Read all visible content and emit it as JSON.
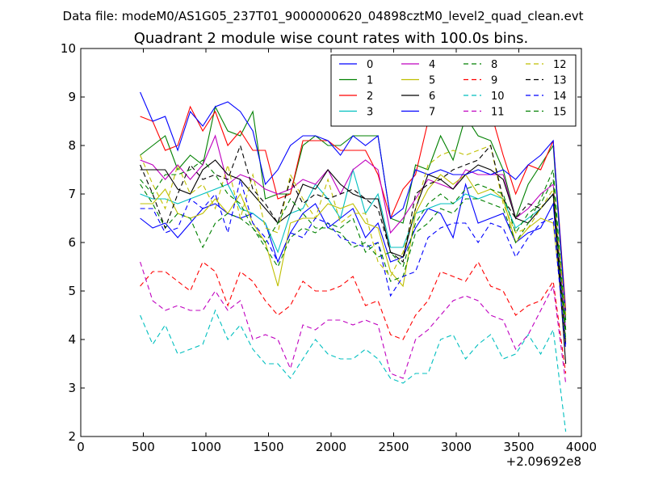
{
  "chart_data": {
    "type": "line",
    "suptitle": "Data file: modeM0/AS1G05_237T01_9000000620_04898cztM0_level2_quad_clean.evt",
    "title": "Quadrant 2 module wise count rates with 100.0s bins.",
    "xlabel": "",
    "ylabel": "",
    "x_offset_label": "+2.09692e8",
    "xlim": [
      0,
      4000
    ],
    "ylim": [
      2,
      10
    ],
    "x_ticks": [
      0,
      500,
      1000,
      1500,
      2000,
      2500,
      3000,
      3500,
      4000
    ],
    "x_tick_labels": [
      "0",
      "500",
      "1000",
      "1500",
      "2000",
      "2500",
      "3000",
      "3500",
      "4000"
    ],
    "y_ticks": [
      2,
      3,
      4,
      5,
      6,
      7,
      8,
      9,
      10
    ],
    "y_tick_labels": [
      "2",
      "3",
      "4",
      "5",
      "6",
      "7",
      "8",
      "9",
      "10"
    ],
    "grid": false,
    "legend_position": "top-right",
    "legend_columns": 4,
    "x": [
      475,
      575,
      675,
      775,
      875,
      975,
      1075,
      1175,
      1275,
      1375,
      1475,
      1575,
      1675,
      1775,
      1875,
      1975,
      2075,
      2175,
      2275,
      2375,
      2475,
      2575,
      2675,
      2775,
      2875,
      2975,
      3075,
      3175,
      3275,
      3375,
      3475,
      3575,
      3675,
      3775,
      3875
    ],
    "series": [
      {
        "name": "0",
        "color": "#0000ff",
        "dash": "solid",
        "values": [
          6.5,
          6.3,
          6.4,
          6.1,
          6.4,
          6.7,
          6.8,
          6.6,
          6.5,
          6.6,
          6.4,
          5.6,
          6.2,
          6.6,
          6.8,
          6.3,
          6.5,
          6.7,
          6.1,
          6.4,
          5.6,
          5.7,
          6.3,
          6.7,
          6.6,
          6.1,
          7.2,
          6.4,
          6.5,
          6.6,
          6.0,
          6.2,
          6.3,
          6.8,
          3.9
        ]
      },
      {
        "name": "1",
        "color": "#008000",
        "dash": "solid",
        "values": [
          7.8,
          8.0,
          8.2,
          7.5,
          7.8,
          7.6,
          8.8,
          8.3,
          8.2,
          8.7,
          6.9,
          7.0,
          7.0,
          8.0,
          8.2,
          8.0,
          8.0,
          8.2,
          8.2,
          8.2,
          6.5,
          6.4,
          7.6,
          7.5,
          8.2,
          7.7,
          8.6,
          8.2,
          8.1,
          7.5,
          6.5,
          7.2,
          7.6,
          8.0,
          4.4
        ]
      },
      {
        "name": "2",
        "color": "#ff0000",
        "dash": "solid",
        "values": [
          8.6,
          8.5,
          7.9,
          8.0,
          8.8,
          8.3,
          8.7,
          8.0,
          8.3,
          7.9,
          7.9,
          6.9,
          7.0,
          8.1,
          8.1,
          8.1,
          7.9,
          7.9,
          7.9,
          7.4,
          6.5,
          7.1,
          7.4,
          8.5,
          8.5,
          8.5,
          8.6,
          8.6,
          8.7,
          7.8,
          7.0,
          7.6,
          7.5,
          8.1,
          4.6
        ]
      },
      {
        "name": "3",
        "color": "#00bfbf",
        "dash": "solid",
        "values": [
          7.0,
          6.9,
          6.9,
          6.8,
          6.9,
          7.0,
          7.1,
          7.2,
          6.7,
          6.6,
          6.4,
          5.8,
          6.6,
          6.7,
          7.2,
          6.9,
          6.5,
          7.5,
          6.6,
          7.0,
          5.9,
          5.9,
          6.6,
          6.7,
          6.8,
          6.8,
          7.0,
          6.9,
          7.0,
          6.9,
          6.3,
          6.5,
          6.7,
          7.0,
          4.2
        ]
      },
      {
        "name": "4",
        "color": "#bf00bf",
        "dash": "solid",
        "values": [
          7.7,
          7.6,
          7.3,
          7.6,
          7.3,
          7.6,
          8.2,
          7.2,
          7.4,
          7.3,
          7.1,
          7.0,
          7.1,
          7.3,
          7.2,
          7.5,
          7.0,
          7.5,
          7.7,
          7.5,
          6.2,
          6.5,
          6.9,
          7.3,
          7.2,
          7.1,
          7.5,
          7.4,
          7.4,
          7.4,
          6.5,
          6.7,
          7.0,
          7.2,
          4.2
        ]
      },
      {
        "name": "5",
        "color": "#bfbf00",
        "dash": "solid",
        "values": [
          6.8,
          6.8,
          7.1,
          6.6,
          6.5,
          6.6,
          6.9,
          6.6,
          7.0,
          6.4,
          6.0,
          5.1,
          6.4,
          6.5,
          6.5,
          6.8,
          6.7,
          6.8,
          6.4,
          6.3,
          5.4,
          5.1,
          6.6,
          7.1,
          7.4,
          7.2,
          7.4,
          7.0,
          7.1,
          6.9,
          6.0,
          6.3,
          6.5,
          6.4,
          4.0
        ]
      },
      {
        "name": "6",
        "color": "#000000",
        "dash": "solid",
        "values": [
          7.5,
          7.5,
          7.5,
          7.1,
          7.0,
          7.5,
          7.7,
          7.4,
          7.3,
          7.0,
          6.7,
          6.4,
          6.6,
          7.2,
          7.1,
          7.5,
          7.2,
          7.0,
          6.9,
          6.9,
          5.8,
          5.7,
          6.7,
          7.4,
          7.3,
          7.1,
          7.4,
          7.6,
          7.5,
          7.3,
          6.5,
          6.4,
          6.7,
          7.0,
          3.5
        ]
      },
      {
        "name": "7",
        "color": "#0000ff",
        "dash": "solid",
        "values": [
          9.1,
          8.5,
          8.6,
          7.9,
          8.7,
          8.4,
          8.8,
          8.9,
          8.7,
          8.3,
          7.2,
          7.5,
          8.0,
          8.2,
          8.2,
          8.1,
          7.8,
          8.2,
          8.0,
          8.2,
          6.5,
          6.7,
          7.5,
          7.4,
          7.5,
          7.4,
          7.4,
          7.5,
          7.4,
          7.5,
          7.3,
          7.6,
          7.8,
          8.1,
          4.5
        ]
      },
      {
        "name": "8",
        "color": "#008000",
        "dash": "dashed",
        "values": [
          7.2,
          6.8,
          6.3,
          6.6,
          6.5,
          5.9,
          6.4,
          6.6,
          6.5,
          6.3,
          5.9,
          5.5,
          6.1,
          6.3,
          6.2,
          6.4,
          6.3,
          6.5,
          5.8,
          6.0,
          5.2,
          5.3,
          6.2,
          6.4,
          6.7,
          6.6,
          6.9,
          6.9,
          6.8,
          6.7,
          6.0,
          6.4,
          6.9,
          7.5,
          4.2
        ]
      },
      {
        "name": "9",
        "color": "#ff0000",
        "dash": "dashed",
        "values": [
          5.1,
          5.4,
          5.4,
          5.2,
          5.0,
          5.6,
          5.4,
          4.7,
          5.4,
          5.2,
          4.8,
          4.5,
          4.7,
          5.2,
          5.0,
          5.0,
          5.1,
          5.3,
          4.7,
          4.8,
          4.1,
          4.0,
          4.5,
          4.8,
          5.4,
          5.3,
          5.2,
          5.6,
          5.1,
          5.0,
          4.5,
          4.7,
          4.8,
          5.2,
          3.3
        ]
      },
      {
        "name": "10",
        "color": "#00bfbf",
        "dash": "dashed",
        "values": [
          4.5,
          3.9,
          4.3,
          3.7,
          3.8,
          3.9,
          4.6,
          4.0,
          4.3,
          3.8,
          3.5,
          3.5,
          3.2,
          3.6,
          4.0,
          3.7,
          3.6,
          3.6,
          3.8,
          3.6,
          3.2,
          3.1,
          3.3,
          3.3,
          4.0,
          4.1,
          3.6,
          3.9,
          4.1,
          3.6,
          3.7,
          4.1,
          3.7,
          4.2,
          2.1
        ]
      },
      {
        "name": "11",
        "color": "#bf00bf",
        "dash": "dashed",
        "values": [
          5.6,
          4.8,
          4.6,
          4.7,
          4.6,
          4.6,
          5.0,
          4.6,
          4.8,
          4.0,
          4.1,
          4.0,
          3.4,
          4.3,
          4.2,
          4.4,
          4.4,
          4.3,
          4.4,
          4.3,
          3.3,
          3.2,
          4.0,
          4.2,
          4.5,
          4.8,
          4.9,
          4.8,
          4.5,
          4.4,
          3.8,
          4.1,
          4.6,
          5.1,
          3.1
        ]
      },
      {
        "name": "12",
        "color": "#bfbf00",
        "dash": "dashed",
        "values": [
          7.8,
          7.2,
          6.7,
          7.6,
          7.0,
          7.2,
          6.7,
          7.6,
          6.5,
          7.4,
          6.3,
          6.2,
          7.4,
          6.9,
          6.5,
          7.3,
          6.4,
          6.6,
          6.6,
          5.6,
          5.3,
          5.8,
          6.7,
          7.6,
          7.8,
          7.9,
          7.8,
          7.9,
          8.0,
          6.8,
          6.2,
          6.3,
          6.7,
          7.1,
          4.5
        ]
      },
      {
        "name": "13",
        "color": "#000000",
        "dash": "dashed",
        "values": [
          7.6,
          7.0,
          6.3,
          7.0,
          7.6,
          7.3,
          7.4,
          7.3,
          8.0,
          7.1,
          6.8,
          6.4,
          7.3,
          6.8,
          7.0,
          6.9,
          7.0,
          7.1,
          6.9,
          6.7,
          5.8,
          5.6,
          7.0,
          7.2,
          7.3,
          7.5,
          7.6,
          7.7,
          8.0,
          6.9,
          6.5,
          6.8,
          6.7,
          7.0,
          3.9
        ]
      },
      {
        "name": "14",
        "color": "#0000ff",
        "dash": "dashed",
        "values": [
          6.7,
          6.7,
          6.2,
          6.3,
          6.9,
          6.7,
          7.0,
          6.2,
          7.3,
          6.4,
          6.1,
          5.6,
          6.2,
          6.1,
          6.5,
          6.4,
          6.1,
          6.0,
          5.9,
          6.0,
          4.9,
          5.3,
          5.4,
          6.1,
          6.3,
          6.4,
          6.4,
          6.0,
          6.4,
          6.3,
          5.7,
          6.1,
          6.4,
          6.5,
          3.8
        ]
      },
      {
        "name": "15",
        "color": "#008000",
        "dash": "dashed",
        "values": [
          7.3,
          7.0,
          7.4,
          7.4,
          7.5,
          7.7,
          7.4,
          7.0,
          6.8,
          6.3,
          6.0,
          6.4,
          6.9,
          6.6,
          6.3,
          6.3,
          6.2,
          5.9,
          6.0,
          5.7,
          5.8,
          5.5,
          6.4,
          6.8,
          7.0,
          6.8,
          7.1,
          7.2,
          7.1,
          7.0,
          6.2,
          6.6,
          6.8,
          7.3,
          4.0
        ]
      }
    ]
  }
}
